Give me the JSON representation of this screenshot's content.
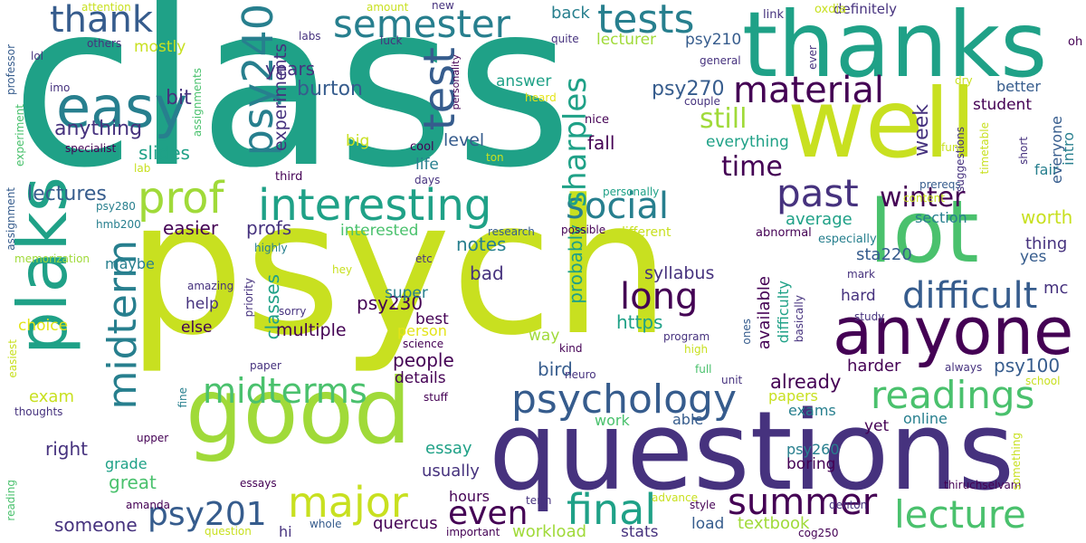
{
  "words": [
    {
      "text": "class",
      "color": "#1fa187"
    },
    {
      "text": "psych",
      "color": "#c8e020"
    },
    {
      "text": "questions",
      "color": "#46327e"
    },
    {
      "text": "thanks",
      "color": "#1fa187"
    },
    {
      "text": "well",
      "color": "#c8e020"
    },
    {
      "text": "good",
      "color": "#a0da39"
    },
    {
      "text": "lot",
      "color": "#4ac16d"
    },
    {
      "text": "anyone",
      "color": "#440154"
    },
    {
      "text": "plaks",
      "color": "#1fa187"
    },
    {
      "text": "easy",
      "color": "#277f8e"
    },
    {
      "text": "semester",
      "color": "#277f8e"
    },
    {
      "text": "tests",
      "color": "#277f8e"
    },
    {
      "text": "thank",
      "color": "#365c8d"
    },
    {
      "text": "psy240",
      "color": "#277f8e"
    },
    {
      "text": "test",
      "color": "#365c8d"
    },
    {
      "text": "prof",
      "color": "#a0da39"
    },
    {
      "text": "interesting",
      "color": "#1fa187"
    },
    {
      "text": "material",
      "color": "#440154"
    },
    {
      "text": "social",
      "color": "#277f8e"
    },
    {
      "text": "past",
      "color": "#46327e"
    },
    {
      "text": "winter",
      "color": "#440154"
    },
    {
      "text": "long",
      "color": "#440154"
    },
    {
      "text": "difficult",
      "color": "#365c8d"
    },
    {
      "text": "midterm",
      "color": "#277f8e"
    },
    {
      "text": "midterms",
      "color": "#4ac16d"
    },
    {
      "text": "psychology",
      "color": "#365c8d"
    },
    {
      "text": "readings",
      "color": "#4ac16d"
    },
    {
      "text": "lecture",
      "color": "#4ac16d"
    },
    {
      "text": "major",
      "color": "#c8e020"
    },
    {
      "text": "final",
      "color": "#1fa187"
    },
    {
      "text": "summer",
      "color": "#440154"
    },
    {
      "text": "even",
      "color": "#440154"
    },
    {
      "text": "psy201",
      "color": "#365c8d"
    },
    {
      "text": "time",
      "color": "#440154"
    },
    {
      "text": "sharples",
      "color": "#1fa187"
    },
    {
      "text": "still",
      "color": "#a0da39"
    },
    {
      "text": "lectures",
      "color": "#365c8d"
    },
    {
      "text": "psy270",
      "color": "#365c8d"
    },
    {
      "text": "burton",
      "color": "#365c8d"
    },
    {
      "text": "experiments",
      "color": "#46327e"
    },
    {
      "text": "anything",
      "color": "#46327e"
    },
    {
      "text": "years",
      "color": "#46327e"
    },
    {
      "text": "bit",
      "color": "#46327e"
    },
    {
      "text": "slides",
      "color": "#1fa187"
    },
    {
      "text": "week",
      "color": "#46327e"
    },
    {
      "text": "fall",
      "color": "#440154"
    },
    {
      "text": "level",
      "color": "#365c8d"
    },
    {
      "text": "life",
      "color": "#277f8e"
    },
    {
      "text": "back",
      "color": "#277f8e"
    },
    {
      "text": "lecturer",
      "color": "#a0da39"
    },
    {
      "text": "psy210",
      "color": "#365c8d"
    },
    {
      "text": "everything",
      "color": "#1fa187"
    },
    {
      "text": "mostly",
      "color": "#c8e020"
    },
    {
      "text": "answer",
      "color": "#1fa187"
    },
    {
      "text": "big",
      "color": "#c8e020"
    },
    {
      "text": "easier",
      "color": "#440154"
    },
    {
      "text": "profs",
      "color": "#46327e"
    },
    {
      "text": "interested",
      "color": "#4ac16d"
    },
    {
      "text": "notes",
      "color": "#277f8e"
    },
    {
      "text": "average",
      "color": "#1fa187"
    },
    {
      "text": "worth",
      "color": "#c8e020"
    },
    {
      "text": "section",
      "color": "#277f8e"
    },
    {
      "text": "psy230",
      "color": "#440154"
    },
    {
      "text": "bad",
      "color": "#46327e"
    },
    {
      "text": "probably",
      "color": "#1fa187"
    },
    {
      "text": "syllabus",
      "color": "#46327e"
    },
    {
      "text": "sta220",
      "color": "#365c8d"
    },
    {
      "text": "thing",
      "color": "#46327e"
    },
    {
      "text": "mc",
      "color": "#46327e"
    },
    {
      "text": "yes",
      "color": "#365c8d"
    },
    {
      "text": "maybe",
      "color": "#277f8e"
    },
    {
      "text": "classes",
      "color": "#1fa187"
    },
    {
      "text": "multiple",
      "color": "#440154"
    },
    {
      "text": "help",
      "color": "#46327e"
    },
    {
      "text": "else",
      "color": "#440154"
    },
    {
      "text": "super",
      "color": "#277f8e"
    },
    {
      "text": "people",
      "color": "#440154"
    },
    {
      "text": "https",
      "color": "#1fa187"
    },
    {
      "text": "bird",
      "color": "#365c8d"
    },
    {
      "text": "already",
      "color": "#440154"
    },
    {
      "text": "psy100",
      "color": "#365c8d"
    },
    {
      "text": "harder",
      "color": "#440154"
    },
    {
      "text": "hard",
      "color": "#46327e"
    },
    {
      "text": "exam",
      "color": "#c8e020"
    },
    {
      "text": "right",
      "color": "#46327e"
    },
    {
      "text": "details",
      "color": "#440154"
    },
    {
      "text": "best",
      "color": "#440154"
    },
    {
      "text": "person",
      "color": "#e3e418"
    },
    {
      "text": "way",
      "color": "#a0da39"
    },
    {
      "text": "essay",
      "color": "#1fa187"
    },
    {
      "text": "great",
      "color": "#4ac16d"
    },
    {
      "text": "grade",
      "color": "#1fa187"
    },
    {
      "text": "someone",
      "color": "#46327e"
    },
    {
      "text": "hours",
      "color": "#440154"
    },
    {
      "text": "usually",
      "color": "#46327e"
    },
    {
      "text": "quercus",
      "color": "#440154"
    },
    {
      "text": "workload",
      "color": "#a0da39"
    },
    {
      "text": "stats",
      "color": "#46327e"
    },
    {
      "text": "textbook",
      "color": "#a0da39"
    },
    {
      "text": "load",
      "color": "#365c8d"
    },
    {
      "text": "boring",
      "color": "#440154"
    },
    {
      "text": "psy260",
      "color": "#277f8e"
    },
    {
      "text": "exams",
      "color": "#277f8e"
    },
    {
      "text": "online",
      "color": "#277f8e"
    },
    {
      "text": "yet",
      "color": "#440154"
    },
    {
      "text": "papers",
      "color": "#c8e020"
    },
    {
      "text": "work",
      "color": "#4ac16d"
    },
    {
      "text": "able",
      "color": "#365c8d"
    },
    {
      "text": "choice",
      "color": "#e3e418"
    },
    {
      "text": "hi",
      "color": "#46327e"
    },
    {
      "text": "fair",
      "color": "#277f8e"
    },
    {
      "text": "intro",
      "color": "#277f8e"
    },
    {
      "text": "everyone",
      "color": "#365c8d"
    },
    {
      "text": "student",
      "color": "#440154"
    },
    {
      "text": "better",
      "color": "#365c8d"
    },
    {
      "text": "definitely",
      "color": "#46327e"
    },
    {
      "text": "oxdia",
      "color": "#c8e020"
    },
    {
      "text": "link",
      "color": "#46327e"
    },
    {
      "text": "oh",
      "color": "#440154"
    },
    {
      "text": "general",
      "color": "#46327e"
    },
    {
      "text": "ever",
      "color": "#46327e"
    },
    {
      "text": "dry",
      "color": "#c8e020"
    },
    {
      "text": "couple",
      "color": "#46327e"
    },
    {
      "text": "prereqs",
      "color": "#365c8d"
    },
    {
      "text": "content",
      "color": "#c8e020"
    },
    {
      "text": "especially",
      "color": "#277f8e"
    },
    {
      "text": "abnormal",
      "color": "#440154"
    },
    {
      "text": "different",
      "color": "#c8e020"
    },
    {
      "text": "possible",
      "color": "#440154"
    },
    {
      "text": "research",
      "color": "#365c8d"
    },
    {
      "text": "personally",
      "color": "#1fa187"
    },
    {
      "text": "days",
      "color": "#46327e"
    },
    {
      "text": "third",
      "color": "#440154"
    },
    {
      "text": "cool",
      "color": "#440154"
    },
    {
      "text": "ton",
      "color": "#c8e020"
    },
    {
      "text": "nice",
      "color": "#440154"
    },
    {
      "text": "heard",
      "color": "#e3e418"
    },
    {
      "text": "quite",
      "color": "#46327e"
    },
    {
      "text": "personality",
      "color": "#440154"
    },
    {
      "text": "luck",
      "color": "#46327e"
    },
    {
      "text": "labs",
      "color": "#46327e"
    },
    {
      "text": "others",
      "color": "#46327e"
    },
    {
      "text": "attention",
      "color": "#c8e020"
    },
    {
      "text": "amount",
      "color": "#c8e020"
    },
    {
      "text": "new",
      "color": "#46327e"
    },
    {
      "text": "lol",
      "color": "#46327e"
    },
    {
      "text": "imo",
      "color": "#46327e"
    },
    {
      "text": "professor",
      "color": "#365c8d"
    },
    {
      "text": "specialist",
      "color": "#440154"
    },
    {
      "text": "lab",
      "color": "#c8e020"
    },
    {
      "text": "experiment",
      "color": "#4ac16d"
    },
    {
      "text": "assignments",
      "color": "#4ac16d"
    },
    {
      "text": "psy280",
      "color": "#277f8e"
    },
    {
      "text": "hmb200",
      "color": "#277f8e"
    },
    {
      "text": "assignment",
      "color": "#365c8d"
    },
    {
      "text": "memorization",
      "color": "#a0da39"
    },
    {
      "text": "highly",
      "color": "#277f8e"
    },
    {
      "text": "etc",
      "color": "#46327e"
    },
    {
      "text": "hey",
      "color": "#c8e020"
    },
    {
      "text": "amazing",
      "color": "#46327e"
    },
    {
      "text": "sorry",
      "color": "#46327e"
    },
    {
      "text": "priority",
      "color": "#46327e"
    },
    {
      "text": "easiest",
      "color": "#c8e020"
    },
    {
      "text": "thoughts",
      "color": "#46327e"
    },
    {
      "text": "paper",
      "color": "#46327e"
    },
    {
      "text": "science",
      "color": "#440154"
    },
    {
      "text": "stuff",
      "color": "#440154"
    },
    {
      "text": "neuro",
      "color": "#46327e"
    },
    {
      "text": "kind",
      "color": "#440154"
    },
    {
      "text": "program",
      "color": "#46327e"
    },
    {
      "text": "high",
      "color": "#c8e020"
    },
    {
      "text": "full",
      "color": "#4ac16d"
    },
    {
      "text": "unit",
      "color": "#46327e"
    },
    {
      "text": "always",
      "color": "#46327e"
    },
    {
      "text": "school",
      "color": "#c8e020"
    },
    {
      "text": "ones",
      "color": "#365c8d"
    },
    {
      "text": "available",
      "color": "#440154"
    },
    {
      "text": "difficulty",
      "color": "#1fa187"
    },
    {
      "text": "basically",
      "color": "#46327e"
    },
    {
      "text": "study",
      "color": "#46327e"
    },
    {
      "text": "mark",
      "color": "#46327e"
    },
    {
      "text": "fine",
      "color": "#277f8e"
    },
    {
      "text": "upper",
      "color": "#440154"
    },
    {
      "text": "essays",
      "color": "#440154"
    },
    {
      "text": "amanda",
      "color": "#440154"
    },
    {
      "text": "reading",
      "color": "#4ac16d"
    },
    {
      "text": "whole",
      "color": "#365c8d"
    },
    {
      "text": "important",
      "color": "#440154"
    },
    {
      "text": "term",
      "color": "#46327e"
    },
    {
      "text": "question",
      "color": "#c8e020"
    },
    {
      "text": "advance",
      "color": "#c8e020"
    },
    {
      "text": "style",
      "color": "#440154"
    },
    {
      "text": "cog250",
      "color": "#440154"
    },
    {
      "text": "denton",
      "color": "#46327e"
    },
    {
      "text": "thiruchselvam",
      "color": "#440154"
    },
    {
      "text": "something",
      "color": "#c8e020"
    },
    {
      "text": "timetable",
      "color": "#c8e020"
    },
    {
      "text": "suggestions",
      "color": "#46327e"
    },
    {
      "text": "fun",
      "color": "#c8e020"
    },
    {
      "text": "short",
      "color": "#46327e"
    }
  ]
}
